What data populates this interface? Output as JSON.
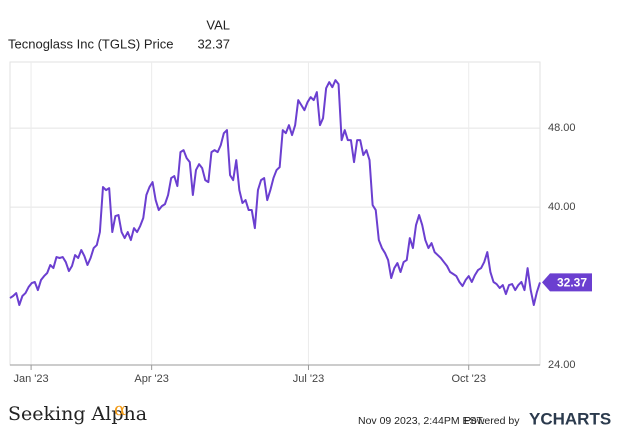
{
  "chart_data": {
    "type": "line",
    "legend_header": "VAL",
    "x": [
      0,
      1,
      2,
      3,
      4,
      5,
      6,
      7,
      8,
      9,
      10,
      11,
      12,
      13,
      14,
      15,
      16,
      17,
      18,
      19,
      20,
      21,
      22,
      23,
      24,
      25,
      26,
      27,
      28,
      29,
      30,
      31,
      32,
      33,
      34,
      35,
      36,
      37,
      38,
      39,
      40,
      41,
      42,
      43,
      44,
      45,
      46,
      47,
      48,
      49,
      50,
      51,
      52,
      53,
      54,
      55,
      56,
      57,
      58,
      59,
      60,
      61,
      62,
      63,
      64,
      65,
      66,
      67,
      68,
      69,
      70,
      71,
      72,
      73,
      74,
      75,
      76,
      77,
      78,
      79,
      80,
      81,
      82,
      83,
      84,
      85,
      86,
      87,
      88,
      89,
      90,
      91,
      92,
      93,
      94,
      95,
      96,
      97,
      98,
      99,
      100,
      101,
      102,
      103,
      104,
      105,
      106,
      107,
      108,
      109,
      110,
      111,
      112,
      113,
      114,
      115,
      116,
      117,
      118,
      119,
      120,
      121,
      122,
      123,
      124,
      125,
      126,
      127,
      128,
      129,
      130,
      131,
      132,
      133,
      134,
      135,
      136,
      137,
      138,
      139,
      140,
      141,
      142,
      143,
      144,
      145,
      146,
      147,
      148,
      149,
      150,
      151,
      152,
      153,
      154,
      155,
      156,
      157,
      158,
      159,
      160,
      161,
      162,
      163,
      164,
      165,
      166,
      167,
      168,
      169,
      170,
      171
    ],
    "series": [
      {
        "name": "Tecnoglass Inc (TGLS) Price",
        "color": "#6b3fd0",
        "values": [
          30.78,
          30.99,
          31.29,
          30.08,
          30.99,
          31.29,
          31.9,
          32.3,
          32.41,
          31.59,
          32.61,
          33.01,
          33.32,
          34.13,
          33.82,
          34.94,
          34.84,
          34.94,
          34.43,
          33.52,
          34.03,
          35.14,
          34.84,
          35.65,
          35.04,
          34.13,
          34.84,
          35.85,
          36.15,
          37.47,
          42.03,
          41.72,
          41.92,
          37.47,
          39.09,
          39.19,
          37.47,
          36.86,
          37.47,
          36.66,
          37.87,
          37.47,
          38.08,
          38.89,
          41.22,
          42.03,
          42.53,
          40.71,
          39.7,
          40.1,
          40.3,
          41.22,
          42.94,
          43.14,
          42.13,
          45.57,
          45.77,
          44.96,
          44.56,
          41.22,
          43.75,
          44.35,
          43.95,
          42.73,
          42.53,
          45.57,
          45.77,
          45.57,
          46.28,
          47.49,
          47.8,
          43.24,
          42.73,
          44.76,
          41.72,
          40.41,
          40.71,
          39.7,
          39.7,
          37.87,
          41.72,
          42.73,
          42.94,
          40.71,
          41.72,
          42.94,
          43.75,
          44.05,
          47.8,
          47.49,
          48.3,
          47.29,
          48.3,
          50.84,
          50.33,
          49.82,
          50.63,
          51.14,
          50.84,
          51.65,
          48.3,
          49.01,
          52.05,
          52.66,
          52.15,
          52.86,
          52.46,
          46.78,
          47.8,
          46.78,
          46.78,
          44.56,
          46.78,
          46.78,
          45.27,
          45.77,
          44.76,
          40.2,
          39.7,
          36.66,
          35.85,
          35.34,
          34.63,
          32.81,
          33.82,
          34.33,
          33.42,
          34.43,
          34.63,
          36.86,
          35.85,
          38.18,
          39.19,
          38.18,
          36.66,
          35.85,
          36.35,
          35.44,
          35.14,
          34.84,
          34.43,
          34.03,
          33.42,
          33.22,
          33.01,
          32.41,
          32.0,
          32.61,
          33.01,
          32.41,
          33.11,
          33.62,
          33.82,
          34.43,
          35.44,
          33.42,
          32.41,
          32.2,
          31.8,
          32.1,
          31.19,
          32.1,
          32.2,
          31.59,
          32.1,
          32.41,
          31.59,
          33.82,
          31.59,
          30.08,
          31.39,
          32.37
        ]
      }
    ],
    "xlim": [
      0,
      171
    ],
    "xticks": [
      {
        "value": 6.8,
        "label": "Jan '23"
      },
      {
        "value": 45.7,
        "label": "Apr '23"
      },
      {
        "value": 96.3,
        "label": "Jul '23"
      },
      {
        "value": 148,
        "label": "Oct '23"
      }
    ],
    "ylim": [
      24,
      54.7
    ],
    "yticks": [
      {
        "value": 24,
        "label": "24.00"
      },
      {
        "value": 40,
        "label": "40.00"
      },
      {
        "value": 48,
        "label": "48.00"
      }
    ],
    "grid": true
  },
  "footer": {
    "source": "Seeking Alpha",
    "source_mark": "α",
    "date": "Nov 09 2023, 2:44PM EST.",
    "powered": "Powered by",
    "brand": "YCHARTS"
  }
}
